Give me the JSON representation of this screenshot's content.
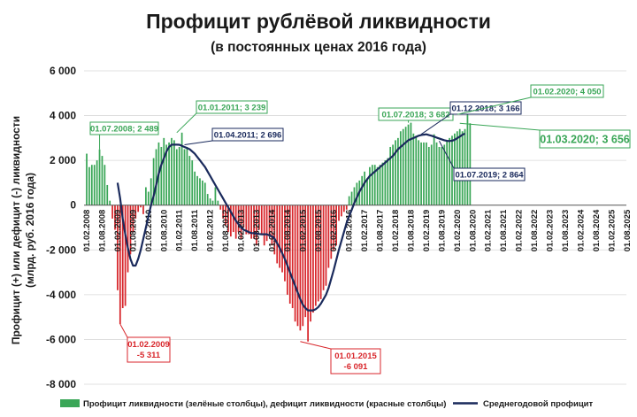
{
  "title": "Профицит рублёвой ликвидности",
  "subtitle": "(в постоянных ценах 2016 года)",
  "colors": {
    "surplus": "#3aa657",
    "deficit": "#d8262b",
    "average": "#1a2a5c",
    "grid": "#d9d9d9"
  },
  "chart_data": {
    "type": "bar",
    "ylabel_line1": "Профицит (+) или дефицит (-) ликвидности",
    "ylabel_line2": "(млрд. руб. 2016 года)",
    "ylim": [
      -8000,
      6000
    ],
    "yticks": [
      6000,
      4000,
      2000,
      0,
      -2000,
      -4000,
      -6000,
      -8000
    ],
    "ytick_labels": [
      "6 000",
      "4 000",
      "2 000",
      "0",
      "-2 000",
      "-4 000",
      "-6 000",
      "-8 000"
    ],
    "x_tick_labels": [
      "01.02.2008",
      "01.08.2008",
      "01.02.2009",
      "01.08.2009",
      "01.02.2010",
      "01.08.2010",
      "01.02.2011",
      "01.08.2011",
      "01.02.2012",
      "01.08.2012",
      "01.02.2013",
      "01.08.2013",
      "01.02.2014",
      "01.08.2014",
      "01.02.2015",
      "01.08.2015",
      "01.02.2016",
      "01.08.2016",
      "01.02.2017",
      "01.08.2017",
      "01.02.2018",
      "01.08.2018",
      "01.02.2019",
      "01.08.2019",
      "01.02.2020",
      "01.08.2020",
      "01.02.2021",
      "01.08.2021",
      "01.02.2022",
      "01.08.2022",
      "01.02.2023",
      "01.08.2023",
      "01.02.2024",
      "01.08.2024",
      "01.02.2025",
      "01.08.2025"
    ],
    "start_month": "2008-02",
    "series": [
      {
        "name": "Профицит ликвидности (зелёные столбцы), дефицит ликвидности (красные столбцы)",
        "values": [
          2300,
          1700,
          1800,
          1800,
          2000,
          2489,
          2200,
          1800,
          900,
          200,
          -600,
          -1100,
          -3800,
          -5311,
          -4600,
          -4500,
          -3000,
          -2200,
          -1200,
          -600,
          -300,
          -100,
          -400,
          800,
          600,
          1200,
          2100,
          2500,
          2800,
          2600,
          3000,
          2700,
          2800,
          3000,
          2900,
          2500,
          2600,
          3239,
          2500,
          2600,
          2200,
          2000,
          1500,
          1300,
          1200,
          1100,
          1000,
          500,
          300,
          200,
          800,
          200,
          -200,
          -600,
          -900,
          -1200,
          -1400,
          -1200,
          -1500,
          -1200,
          -1500,
          -1000,
          -1300,
          -1300,
          -1500,
          -1500,
          -1800,
          -1100,
          -1300,
          -1800,
          -1600,
          -1400,
          -1800,
          -2200,
          -2600,
          -2800,
          -3000,
          -3400,
          -4000,
          -4400,
          -4600,
          -5200,
          -5400,
          -5600,
          -5400,
          -5000,
          -6091,
          -5200,
          -4800,
          -4500,
          -4300,
          -4200,
          -3800,
          -3600,
          -2800,
          -2400,
          -2000,
          -1800,
          -700,
          -500,
          -300,
          -200,
          400,
          600,
          800,
          1000,
          1100,
          1300,
          1500,
          1200,
          1700,
          1800,
          1800,
          1700,
          1800,
          1900,
          2000,
          2100,
          2600,
          2700,
          2900,
          3000,
          3300,
          3400,
          3500,
          3600,
          3682,
          3200,
          3100,
          2900,
          2800,
          2800,
          2800,
          2600,
          2700,
          3166,
          2800,
          2600,
          2600,
          2700,
          2900,
          3000,
          3100,
          3200,
          3300,
          3400,
          3300,
          3400,
          4050,
          3656
        ]
      },
      {
        "name": "Среднегодовой профицит",
        "values": [
          null,
          null,
          null,
          null,
          null,
          null,
          null,
          null,
          null,
          null,
          null,
          null,
          1000,
          300,
          -600,
          -1300,
          -1900,
          -2400,
          -2700,
          -2700,
          -2400,
          -2000,
          -1500,
          -1000,
          -500,
          0,
          400,
          900,
          1400,
          1800,
          2100,
          2400,
          2600,
          2700,
          2700,
          2700,
          2696,
          2650,
          2600,
          2550,
          2500,
          2400,
          2300,
          2150,
          2000,
          1850,
          1700,
          1500,
          1300,
          1100,
          900,
          700,
          500,
          300,
          100,
          -100,
          -300,
          -500,
          -700,
          -850,
          -1000,
          -1100,
          -1150,
          -1200,
          -1250,
          -1250,
          -1270,
          -1290,
          -1300,
          -1300,
          -1300,
          -1350,
          -1400,
          -1500,
          -1700,
          -1900,
          -2150,
          -2400,
          -2700,
          -3000,
          -3300,
          -3600,
          -3900,
          -4200,
          -4450,
          -4600,
          -4700,
          -4700,
          -4700,
          -4650,
          -4550,
          -4400,
          -4200,
          -4000,
          -3700,
          -3300,
          -2900,
          -2450,
          -2000,
          -1600,
          -1200,
          -800,
          -500,
          -200,
          100,
          350,
          600,
          800,
          1000,
          1150,
          1300,
          1400,
          1500,
          1600,
          1700,
          1800,
          1900,
          2000,
          2100,
          2200,
          2350,
          2500,
          2600,
          2700,
          2800,
          2900,
          2950,
          3000,
          3050,
          3100,
          3130,
          3150,
          3166,
          3130,
          3100,
          3060,
          3020,
          2980,
          2940,
          2900,
          2870,
          2864,
          2880,
          2920,
          2990,
          3060,
          3140,
          3200
        ]
      }
    ],
    "annotations": [
      {
        "text": "01.07.2008; 2 489",
        "color": "green"
      },
      {
        "text": "01.01.2011; 3 239",
        "color": "green"
      },
      {
        "text": "01.04.2011; 2 696",
        "color": "navy"
      },
      {
        "text": "01.07.2018; 3 682",
        "color": "green"
      },
      {
        "text": "01.12.2018; 3 166",
        "color": "navy"
      },
      {
        "text": "01.02.2020; 4 050",
        "color": "green"
      },
      {
        "text": "01.03.2020; 3 656",
        "color": "green"
      },
      {
        "text": "01.07.2019; 2 864",
        "color": "navy"
      },
      {
        "text": "01.02.2009\n-5 311",
        "color": "red"
      },
      {
        "text": "01.01.2015\n-6 091",
        "color": "red"
      }
    ],
    "legend": [
      {
        "label": "Профицит ликвидности (зелёные столбцы), дефицит ликвидности (красные столбцы)"
      },
      {
        "label": "Среднегодовой профицит"
      }
    ]
  }
}
